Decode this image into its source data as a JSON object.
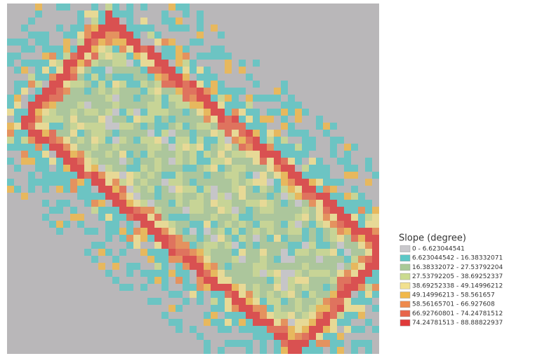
{
  "legend": {
    "title": "Slope (degree)",
    "items": [
      {
        "label": "0 - 6.623044541",
        "color": "#c9c8cc"
      },
      {
        "label": "6.623044542 - 16.38332071",
        "color": "#5cc7c6"
      },
      {
        "label": "16.38332072 - 27.53792204",
        "color": "#a9c996"
      },
      {
        "label": "27.53792205 - 38.69252337",
        "color": "#cbdb8f"
      },
      {
        "label": "38.69252338 - 49.14996212",
        "color": "#f1e08f"
      },
      {
        "label": "49.14996213 - 58.561657",
        "color": "#f1b84a"
      },
      {
        "label": "58.56165701 - 66.927608",
        "color": "#ee8a4c"
      },
      {
        "label": "66.92760801 - 74.24781512",
        "color": "#e8644a"
      },
      {
        "label": "74.24781513 - 88.88822937",
        "color": "#e03a3a"
      }
    ]
  }
}
